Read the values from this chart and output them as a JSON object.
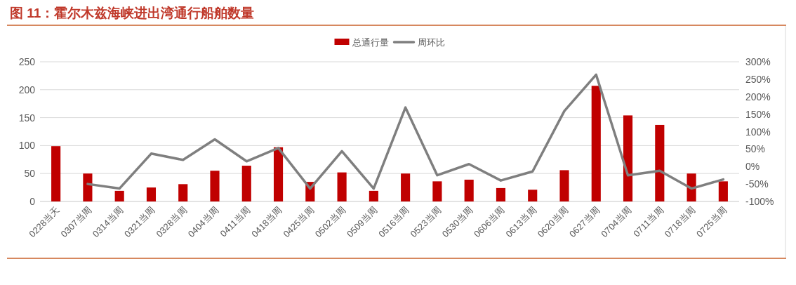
{
  "chart_data": {
    "type": "bar",
    "title": "图 11：霍尔木兹海峡进出湾通行船舶数量",
    "categories": [
      "0228当天",
      "0307当周",
      "0314当周",
      "0321当周",
      "0328当周",
      "0404当周",
      "0411当周",
      "0418当周",
      "0425当周",
      "0502当周",
      "0509当周",
      "0516当周",
      "0523当周",
      "0530当周",
      "0606当周",
      "0613当周",
      "0620当周",
      "0627当周",
      "0704当周",
      "0711当周",
      "0718当周",
      "0725当周"
    ],
    "series": [
      {
        "name": "总通行量",
        "color": "#c00000",
        "values": [
          99,
          50,
          19,
          25,
          31,
          55,
          64,
          97,
          35,
          52,
          19,
          50,
          36,
          39,
          24,
          21,
          56,
          207,
          154,
          137,
          50,
          36
        ]
      },
      {
        "name": "周环比",
        "type": "line",
        "axis": "y2",
        "color": "#7f7f7f",
        "values": [
          null,
          -50,
          -63,
          37,
          19,
          78,
          15,
          53,
          -63,
          44,
          -63,
          169,
          -25,
          7,
          -40,
          -14,
          159,
          263,
          -25,
          -12,
          -63,
          -37
        ]
      }
    ],
    "ylim": [
      0,
      250
    ],
    "yticks": [
      0,
      50,
      100,
      150,
      200,
      250
    ],
    "y2lim": [
      -100,
      300
    ],
    "y2ticks": [
      {
        "value": -100,
        "label": "-100%"
      },
      {
        "value": -50,
        "label": "-50%"
      },
      {
        "value": 0,
        "label": "0%"
      },
      {
        "value": 50,
        "label": "50%"
      },
      {
        "value": 100,
        "label": "100%"
      },
      {
        "value": 150,
        "label": "150%"
      },
      {
        "value": 200,
        "label": "200%"
      },
      {
        "value": 250,
        "label": "250%"
      },
      {
        "value": 300,
        "label": "300%"
      }
    ],
    "grid": "y",
    "legend": "top"
  }
}
